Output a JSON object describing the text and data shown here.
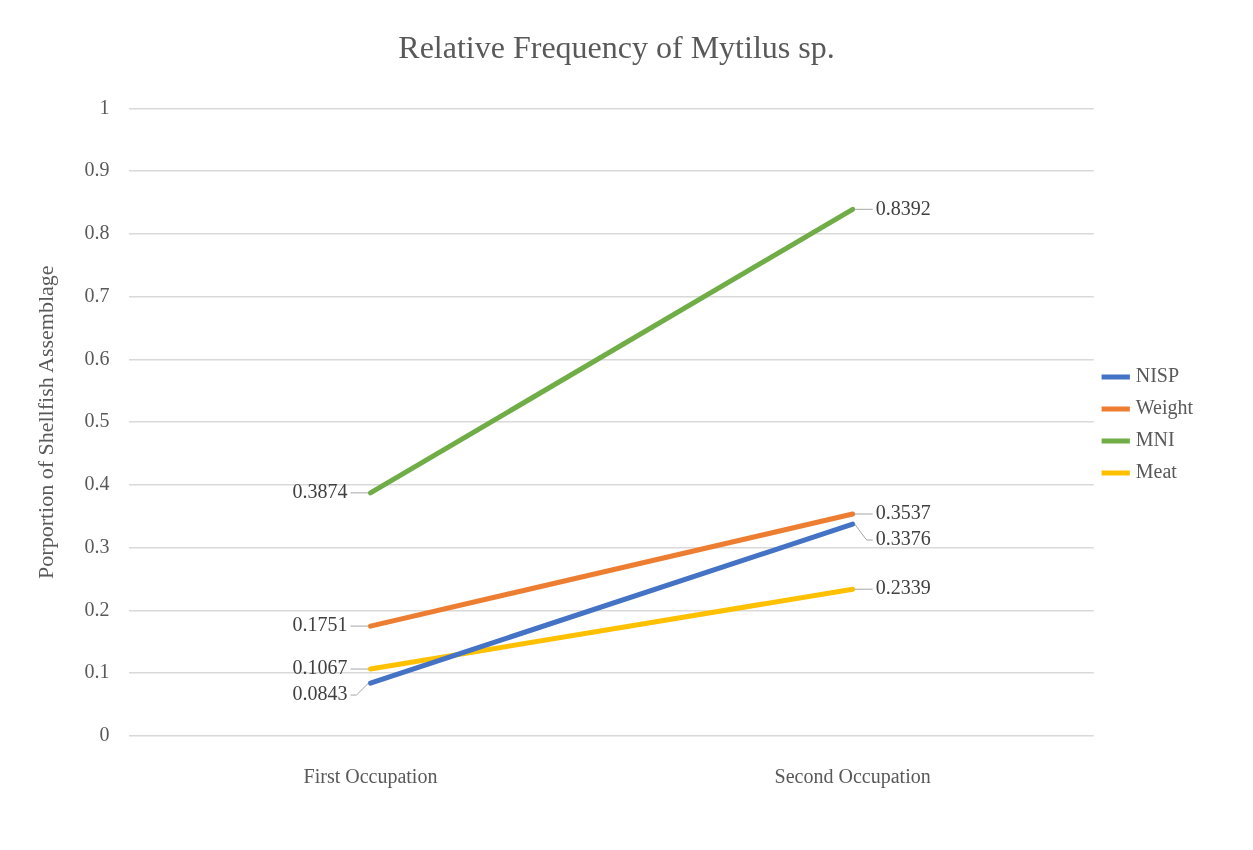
{
  "chart_data": {
    "type": "line",
    "title": "Relative Frequency of Mytilus sp.",
    "ylabel": "Porportion of Shellfish Assemblage",
    "categories": [
      "First Occupation",
      "Second Occupation"
    ],
    "series": [
      {
        "name": "NISP",
        "color": "#4472c4",
        "values": [
          0.0843,
          0.3376
        ]
      },
      {
        "name": "Weight",
        "color": "#ed7d31",
        "values": [
          0.1751,
          0.3537
        ]
      },
      {
        "name": "MNI",
        "color": "#70ad47",
        "values": [
          0.3874,
          0.8392
        ]
      },
      {
        "name": "Meat",
        "color": "#ffc000",
        "values": [
          0.1067,
          0.2339
        ]
      }
    ],
    "ylim": [
      0,
      1
    ],
    "yticks": [
      0,
      0.1,
      0.2,
      0.3,
      0.4,
      0.5,
      0.6,
      0.7,
      0.8,
      0.9,
      1
    ],
    "grid": "y",
    "legend": "right",
    "marker": "none",
    "line_style": "solid",
    "data_labels": true
  }
}
